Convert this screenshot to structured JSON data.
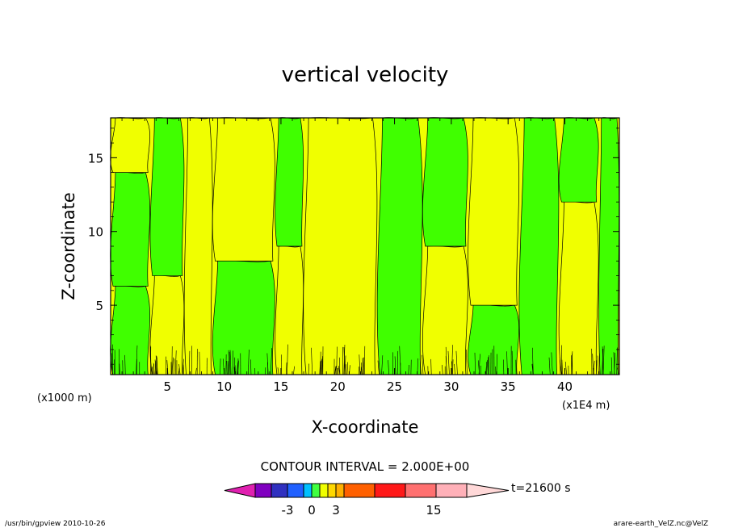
{
  "chart_data": {
    "type": "heatmap",
    "title": "vertical velocity",
    "xlabel": "X-coordinate",
    "ylabel": "Z-coordinate",
    "x_scale_note": "(x1E4 m)",
    "y_scale_note": "(x1000 m)",
    "x_range": [
      0,
      44.8
    ],
    "y_range": [
      0.3,
      17.7
    ],
    "x_ticks": [
      "5",
      "10",
      "15",
      "20",
      "25",
      "30",
      "35",
      "40"
    ],
    "y_ticks": [
      "5",
      "10",
      "15"
    ],
    "contour_interval": "CONTOUR INTERVAL = 2.000E+00",
    "time_label": "t=21600 s",
    "colorbar_ticks": [
      "-3",
      "0",
      "3",
      "15"
    ],
    "colorbar_colors": [
      "#e020b0",
      "#8000c0",
      "#3030c0",
      "#2060ff",
      "#00c0ff",
      "#40ff40",
      "#f0ff00",
      "#ffd800",
      "#ffb000",
      "#ff6000",
      "#ff1818",
      "#ff7070",
      "#ffb0b8",
      "#ffd8d8"
    ],
    "field_colors": {
      "negative": "#40ff00",
      "positive": "#f0ff00"
    },
    "regions": [
      {
        "x": 0.0,
        "y0": 0.3,
        "y1": 6.3,
        "sign": "negative"
      },
      {
        "x": 0.0,
        "y0": 6.3,
        "y1": 14.0,
        "sign": "negative"
      },
      {
        "x": 0.0,
        "y0": 14.0,
        "y1": 17.7,
        "sign": "positive"
      },
      {
        "x": 3.5,
        "y0": 0.3,
        "y1": 7.0,
        "sign": "positive"
      },
      {
        "x": 3.5,
        "y0": 7.0,
        "y1": 17.7,
        "sign": "negative"
      },
      {
        "x": 6.5,
        "y0": 0.3,
        "y1": 17.7,
        "sign": "positive"
      },
      {
        "x": 9.0,
        "y0": 0.3,
        "y1": 8.0,
        "sign": "negative"
      },
      {
        "x": 9.0,
        "y0": 8.0,
        "y1": 17.7,
        "sign": "positive"
      },
      {
        "x": 14.5,
        "y0": 0.3,
        "y1": 9.0,
        "sign": "positive"
      },
      {
        "x": 14.5,
        "y0": 9.0,
        "y1": 17.7,
        "sign": "negative"
      },
      {
        "x": 17.0,
        "y0": 0.3,
        "y1": 17.7,
        "sign": "positive"
      },
      {
        "x": 23.5,
        "y0": 0.3,
        "y1": 17.7,
        "sign": "negative"
      },
      {
        "x": 27.5,
        "y0": 0.3,
        "y1": 9.0,
        "sign": "positive"
      },
      {
        "x": 27.5,
        "y0": 9.0,
        "y1": 17.7,
        "sign": "negative"
      },
      {
        "x": 31.5,
        "y0": 0.3,
        "y1": 5.0,
        "sign": "negative"
      },
      {
        "x": 31.5,
        "y0": 5.0,
        "y1": 17.7,
        "sign": "positive"
      },
      {
        "x": 36.0,
        "y0": 0.3,
        "y1": 17.7,
        "sign": "negative"
      },
      {
        "x": 39.5,
        "y0": 0.3,
        "y1": 12.0,
        "sign": "positive"
      },
      {
        "x": 39.5,
        "y0": 12.0,
        "y1": 17.7,
        "sign": "negative"
      },
      {
        "x": 43.0,
        "y0": 0.3,
        "y1": 17.7,
        "sign": "negative"
      }
    ]
  },
  "footer": {
    "left": "/usr/bin/gpview   2010-10-26",
    "right": "arare-earth_VelZ.nc@VelZ"
  }
}
